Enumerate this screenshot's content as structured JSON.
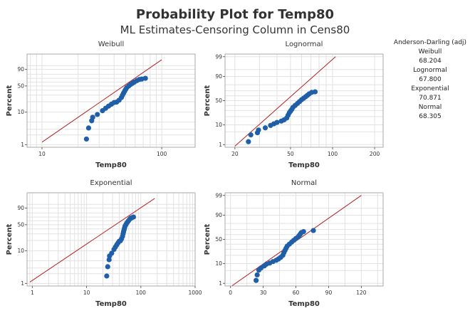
{
  "title": "Probability Plot for Temp80",
  "subtitle": "ML Estimates-Censoring Column in Cens80",
  "stats": {
    "header": "Anderson-Darling (adj)",
    "rows": [
      {
        "label": "Weibull",
        "value": "68.204"
      },
      {
        "label": "Lognormal",
        "value": "67.800"
      },
      {
        "label": "Exponential",
        "value": "70.871"
      },
      {
        "label": "Normal",
        "value": "68.305"
      }
    ]
  },
  "colors": {
    "points": "#1f5fa8",
    "fit_line": "#b22222",
    "grid": "#e2e2e2",
    "frame": "#aaaaaa"
  },
  "chart_data": [
    {
      "type": "scatter",
      "title": "Weibull",
      "xlabel": "Temp80",
      "ylabel": "Percent",
      "x_scale": "log",
      "y_scale": "weibull",
      "xlim": [
        7.5,
        190
      ],
      "ylim": [
        1,
        99
      ],
      "xticks": [
        10,
        100
      ],
      "yticks": [
        1,
        10,
        50,
        90
      ],
      "ygrid": [
        1,
        2,
        3,
        5,
        10,
        20,
        30,
        40,
        50,
        60,
        70,
        80,
        90,
        95
      ],
      "fit_line": [
        {
          "x": 10,
          "y": 1.2
        },
        {
          "x": 100,
          "y": 99
        }
      ],
      "points": [
        {
          "x": 23.5,
          "y": 1.5
        },
        {
          "x": 24.5,
          "y": 3.3
        },
        {
          "x": 26,
          "y": 5.5
        },
        {
          "x": 26.5,
          "y": 7
        },
        {
          "x": 29,
          "y": 8.5
        },
        {
          "x": 32,
          "y": 11
        },
        {
          "x": 34,
          "y": 13
        },
        {
          "x": 36,
          "y": 15
        },
        {
          "x": 38,
          "y": 17
        },
        {
          "x": 40,
          "y": 19
        },
        {
          "x": 42,
          "y": 19.5
        },
        {
          "x": 44,
          "y": 22
        },
        {
          "x": 46,
          "y": 26
        },
        {
          "x": 47,
          "y": 30
        },
        {
          "x": 48,
          "y": 34
        },
        {
          "x": 49,
          "y": 38
        },
        {
          "x": 50,
          "y": 42
        },
        {
          "x": 51,
          "y": 46
        },
        {
          "x": 53,
          "y": 50
        },
        {
          "x": 55,
          "y": 54
        },
        {
          "x": 57,
          "y": 57
        },
        {
          "x": 59,
          "y": 60
        },
        {
          "x": 62,
          "y": 64
        },
        {
          "x": 65,
          "y": 67
        },
        {
          "x": 68,
          "y": 68
        },
        {
          "x": 73,
          "y": 70
        }
      ]
    },
    {
      "type": "scatter",
      "title": "Lognormal",
      "xlabel": "Temp80",
      "ylabel": "Percent",
      "x_scale": "log",
      "y_scale": "normal",
      "xlim": [
        17,
        230
      ],
      "ylim": [
        1,
        99
      ],
      "xticks": [
        20,
        50,
        100,
        200
      ],
      "yticks": [
        1,
        10,
        50,
        90,
        99
      ],
      "ygrid": [
        1,
        5,
        10,
        20,
        30,
        40,
        50,
        60,
        70,
        80,
        90,
        95,
        99
      ],
      "fit_line": [
        {
          "x": 20,
          "y": 0.8
        },
        {
          "x": 105,
          "y": 99
        }
      ],
      "points": [
        {
          "x": 25,
          "y": 1.5
        },
        {
          "x": 26,
          "y": 3.5
        },
        {
          "x": 29,
          "y": 4.5
        },
        {
          "x": 29.5,
          "y": 6
        },
        {
          "x": 33,
          "y": 7.5
        },
        {
          "x": 36,
          "y": 9.5
        },
        {
          "x": 38,
          "y": 11
        },
        {
          "x": 40,
          "y": 12.5
        },
        {
          "x": 43,
          "y": 14
        },
        {
          "x": 45,
          "y": 15.5
        },
        {
          "x": 47,
          "y": 18
        },
        {
          "x": 48,
          "y": 22
        },
        {
          "x": 49,
          "y": 26
        },
        {
          "x": 50,
          "y": 29
        },
        {
          "x": 51,
          "y": 32
        },
        {
          "x": 52,
          "y": 36
        },
        {
          "x": 54,
          "y": 40
        },
        {
          "x": 56,
          "y": 44
        },
        {
          "x": 58,
          "y": 48
        },
        {
          "x": 60,
          "y": 52
        },
        {
          "x": 62,
          "y": 55
        },
        {
          "x": 64,
          "y": 58
        },
        {
          "x": 66,
          "y": 61
        },
        {
          "x": 68,
          "y": 64
        },
        {
          "x": 71,
          "y": 67
        },
        {
          "x": 75,
          "y": 68
        }
      ]
    },
    {
      "type": "scatter",
      "title": "Exponential",
      "xlabel": "Temp80",
      "ylabel": "Percent",
      "x_scale": "log",
      "y_scale": "weibull",
      "xlim": [
        0.8,
        1000
      ],
      "ylim": [
        1,
        99
      ],
      "xticks": [
        1,
        10,
        100,
        1000
      ],
      "yticks": [
        1,
        10,
        50,
        90
      ],
      "ygrid": [
        1,
        2,
        3,
        5,
        10,
        20,
        30,
        40,
        50,
        60,
        70,
        80,
        90,
        95
      ],
      "fit_line": [
        {
          "x": 0.9,
          "y": 1.1
        },
        {
          "x": 180,
          "y": 99
        }
      ],
      "points": [
        {
          "x": 23.5,
          "y": 1.7
        },
        {
          "x": 24.5,
          "y": 3.3
        },
        {
          "x": 26,
          "y": 5.4
        },
        {
          "x": 26.5,
          "y": 7
        },
        {
          "x": 29,
          "y": 8.5
        },
        {
          "x": 32,
          "y": 11
        },
        {
          "x": 34,
          "y": 13
        },
        {
          "x": 36,
          "y": 15
        },
        {
          "x": 38,
          "y": 17
        },
        {
          "x": 40,
          "y": 19
        },
        {
          "x": 42,
          "y": 19.5
        },
        {
          "x": 44,
          "y": 22
        },
        {
          "x": 46,
          "y": 26
        },
        {
          "x": 47,
          "y": 30
        },
        {
          "x": 48,
          "y": 34
        },
        {
          "x": 49,
          "y": 38
        },
        {
          "x": 50,
          "y": 42
        },
        {
          "x": 51,
          "y": 46
        },
        {
          "x": 53,
          "y": 50
        },
        {
          "x": 55,
          "y": 54
        },
        {
          "x": 57,
          "y": 57
        },
        {
          "x": 59,
          "y": 60
        },
        {
          "x": 62,
          "y": 64
        },
        {
          "x": 65,
          "y": 67
        },
        {
          "x": 68,
          "y": 68
        },
        {
          "x": 73,
          "y": 70
        }
      ]
    },
    {
      "type": "scatter",
      "title": "Normal",
      "xlabel": "Temp80",
      "ylabel": "Percent",
      "x_scale": "linear",
      "y_scale": "normal",
      "xlim": [
        -5,
        140
      ],
      "ylim": [
        1,
        99
      ],
      "xticks": [
        0,
        30,
        60,
        90,
        120
      ],
      "yticks": [
        1,
        10,
        50,
        90,
        99
      ],
      "ygrid": [
        1,
        5,
        10,
        20,
        30,
        40,
        50,
        60,
        70,
        80,
        90,
        95,
        99
      ],
      "fit_line": [
        {
          "x": 0,
          "y": 0.6
        },
        {
          "x": 120,
          "y": 99
        }
      ],
      "points": [
        {
          "x": 23.5,
          "y": 1.5
        },
        {
          "x": 24.5,
          "y": 3
        },
        {
          "x": 26,
          "y": 5.2
        },
        {
          "x": 28,
          "y": 6.5
        },
        {
          "x": 31,
          "y": 8
        },
        {
          "x": 33,
          "y": 9.5
        },
        {
          "x": 36,
          "y": 10.5
        },
        {
          "x": 39,
          "y": 12
        },
        {
          "x": 42,
          "y": 13.5
        },
        {
          "x": 44,
          "y": 15
        },
        {
          "x": 46,
          "y": 17
        },
        {
          "x": 48,
          "y": 20
        },
        {
          "x": 49,
          "y": 24
        },
        {
          "x": 50,
          "y": 28
        },
        {
          "x": 51,
          "y": 32
        },
        {
          "x": 52,
          "y": 36
        },
        {
          "x": 54,
          "y": 40
        },
        {
          "x": 56,
          "y": 44
        },
        {
          "x": 58,
          "y": 48
        },
        {
          "x": 60,
          "y": 52
        },
        {
          "x": 62,
          "y": 55
        },
        {
          "x": 63,
          "y": 58
        },
        {
          "x": 64,
          "y": 61
        },
        {
          "x": 65,
          "y": 64
        },
        {
          "x": 67,
          "y": 66
        },
        {
          "x": 76,
          "y": 68
        }
      ]
    }
  ]
}
